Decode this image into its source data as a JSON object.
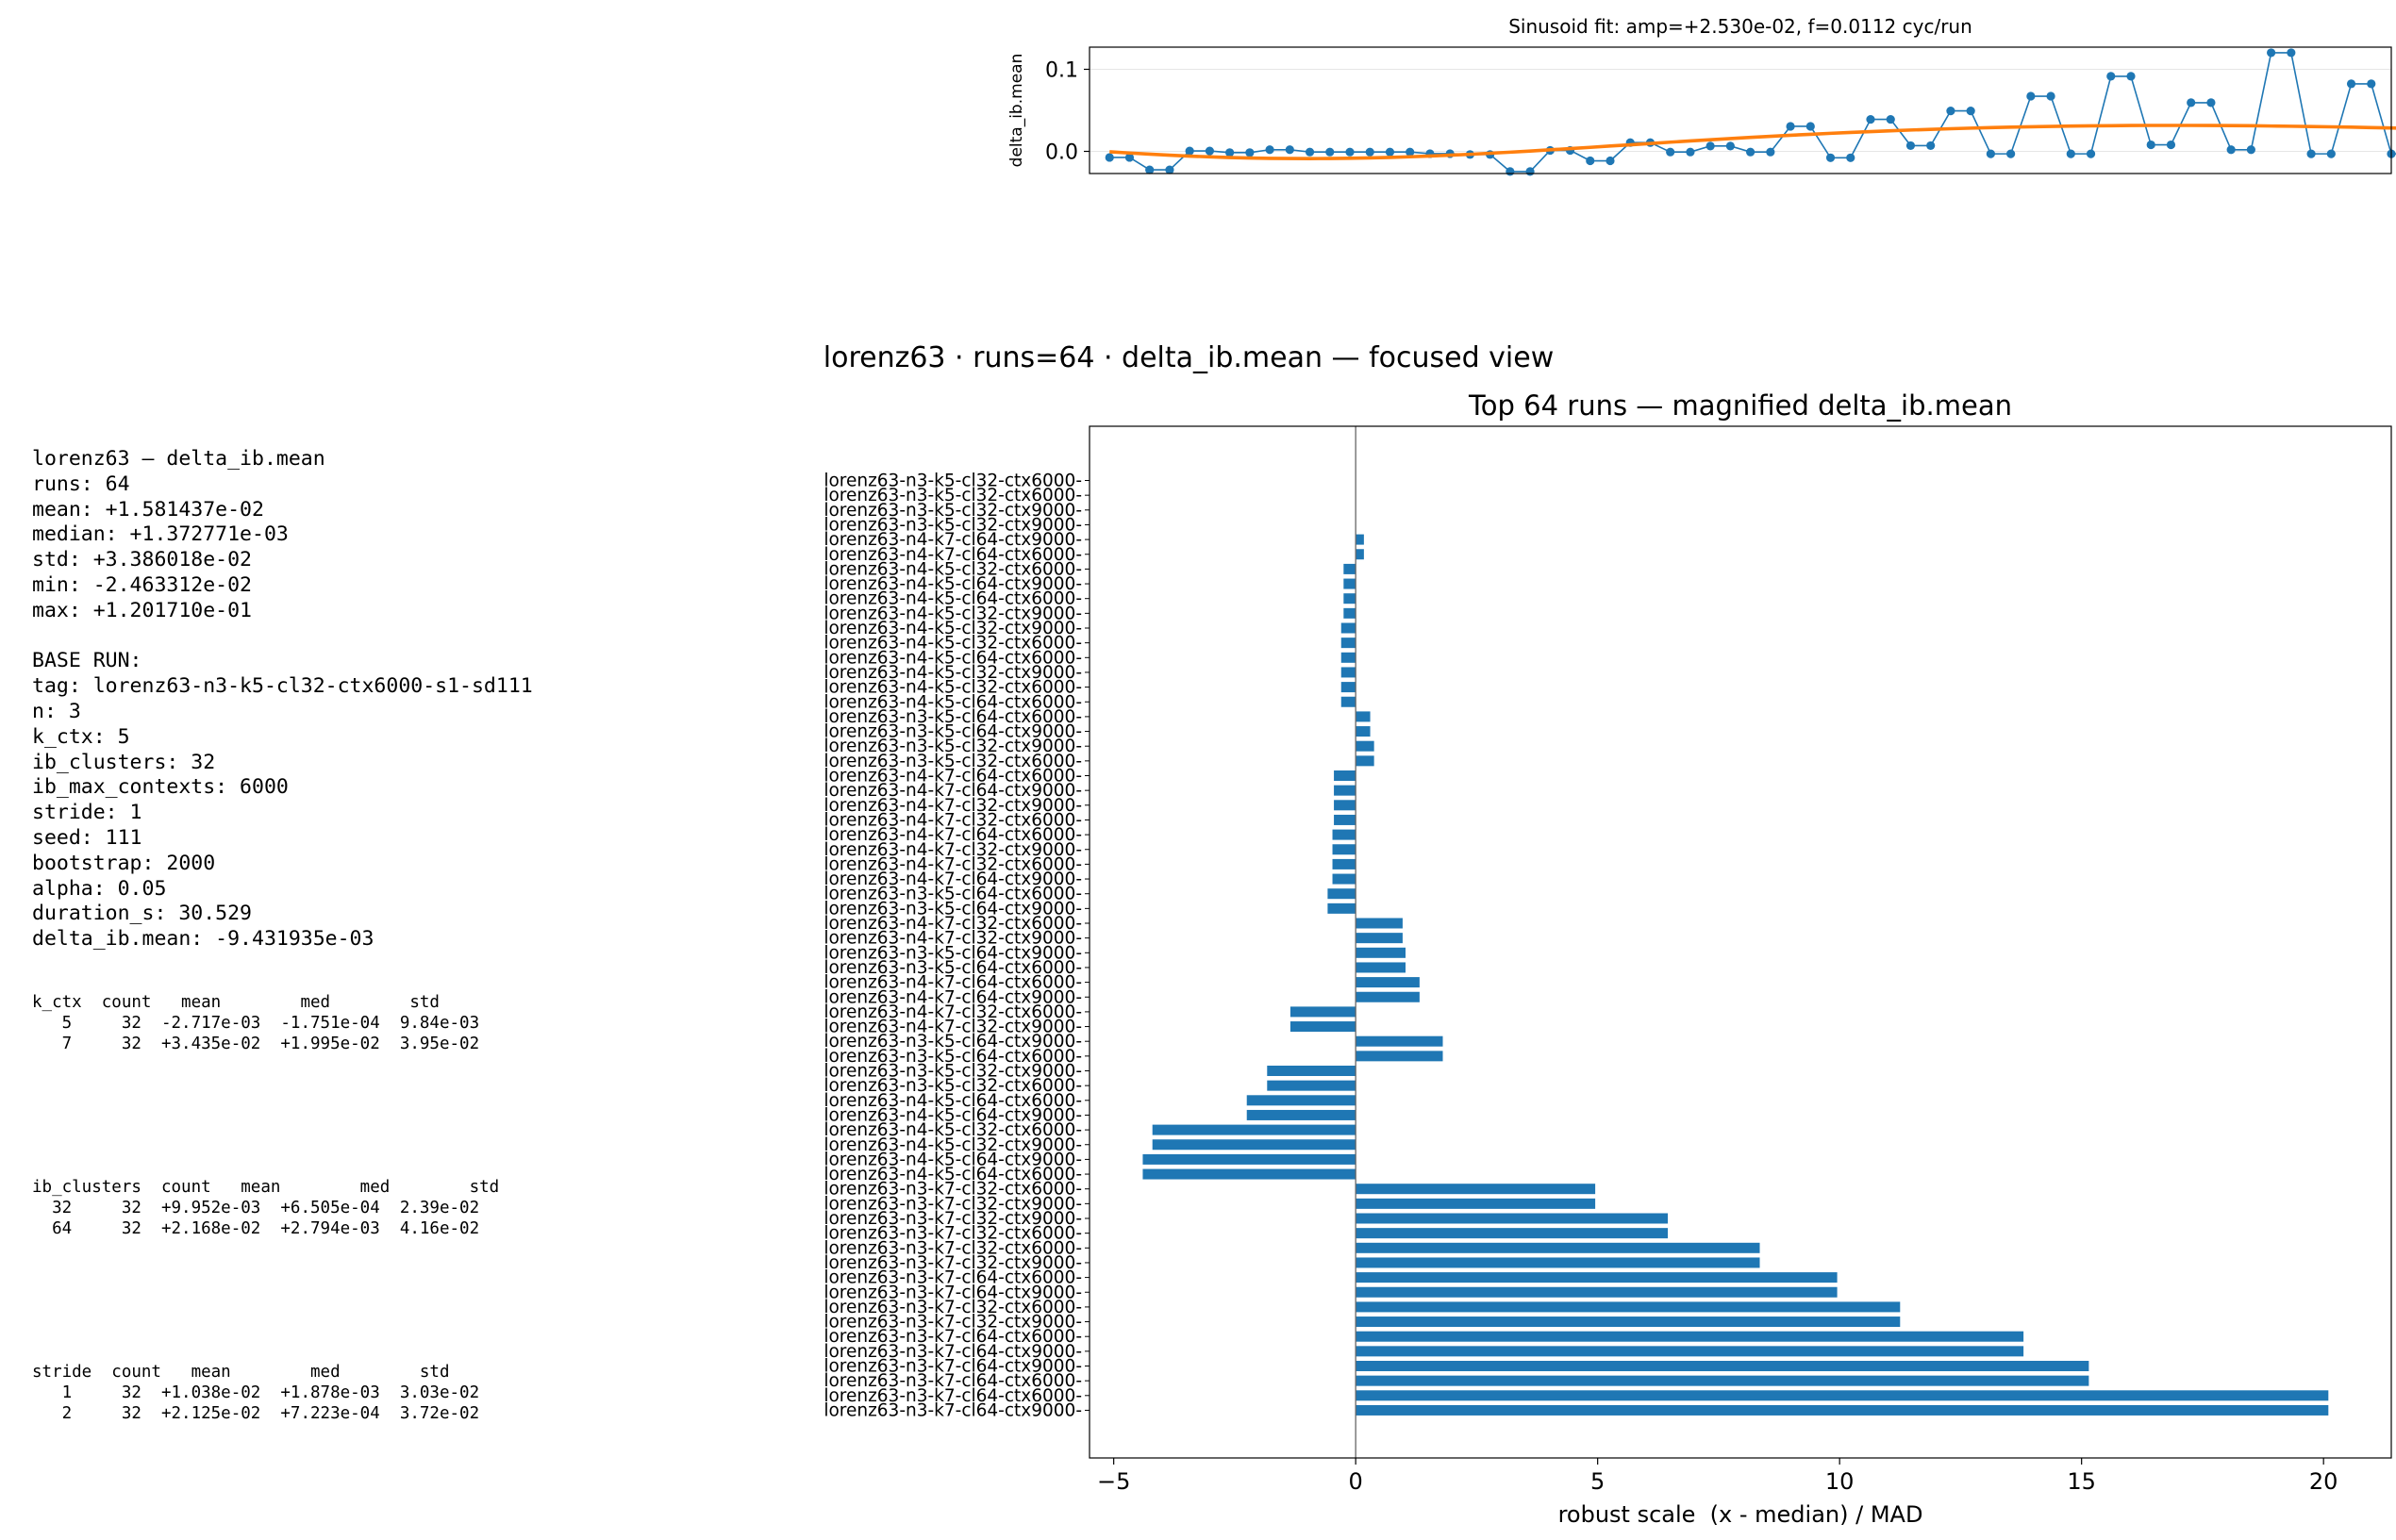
{
  "figure_title": "lorenz63 · runs=64 · delta_ib.mean — focused view",
  "summary": {
    "lines": [
      "lorenz63 — delta_ib.mean",
      "runs: 64",
      "mean: +1.581437e-02",
      "median: +1.372771e-03",
      "std: +3.386018e-02",
      "min: -2.463312e-02",
      "max: +1.201710e-01",
      "",
      "BASE RUN:",
      "tag: lorenz63-n3-k5-cl32-ctx6000-s1-sd111",
      "n: 3",
      "k_ctx: 5",
      "ib_clusters: 32",
      "ib_max_contexts: 6000",
      "stride: 1",
      "seed: 111",
      "bootstrap: 2000",
      "alpha: 0.05",
      "duration_s: 30.529",
      "delta_ib.mean: -9.431935e-03"
    ]
  },
  "group_tables": [
    {
      "header": "k_ctx  count   mean        med        std",
      "rows": [
        "   5     32  -2.717e-03  -1.751e-04  9.84e-03",
        "   7     32  +3.435e-02  +1.995e-02  3.95e-02"
      ]
    },
    {
      "header": "ib_clusters  count   mean        med        std",
      "rows": [
        "  32     32  +9.952e-03  +6.505e-04  2.39e-02",
        "  64     32  +2.168e-02  +2.794e-03  4.16e-02"
      ]
    },
    {
      "header": "stride  count   mean        med        std",
      "rows": [
        "   1     32  +1.038e-02  +1.878e-03  3.03e-02",
        "   2     32  +2.125e-02  +7.223e-04  3.72e-02"
      ]
    }
  ],
  "chart_data": [
    {
      "type": "line",
      "title": "Sinusoid fit: amp=+2.530e-02, f=0.0112 cyc/run",
      "xlabel": "",
      "ylabel": "delta_ib.mean",
      "ylim": [
        -0.027,
        0.127
      ],
      "xlim": [
        -1,
        64
      ],
      "yticks": [
        0.0,
        0.1
      ],
      "ytick_labels": [
        "0.0",
        "0.1"
      ],
      "grid": true,
      "series": [
        {
          "values": [
            -0.0074,
            -0.0074,
            -0.0225,
            -0.0225,
            0.0005,
            0.0005,
            -0.0015,
            -0.0015,
            0.002,
            0.002,
            -0.0008,
            -0.0008,
            -0.0008,
            -0.0008,
            -0.0008,
            -0.0008,
            -0.0028,
            -0.0028,
            -0.0038,
            -0.0038,
            -0.0246,
            -0.0246,
            0.0012,
            0.0012,
            -0.0115,
            -0.0115,
            0.0107,
            0.0107,
            -0.0008,
            -0.0008,
            0.0065,
            0.0065,
            -0.0008,
            -0.0008,
            0.0305,
            0.0305,
            -0.0078,
            -0.0078,
            0.039,
            0.039,
            0.007,
            0.007,
            0.0493,
            0.0493,
            -0.003,
            -0.003,
            0.0672,
            0.0672,
            -0.003,
            -0.003,
            0.0915,
            0.0915,
            0.008,
            0.008,
            0.0593,
            0.0593,
            0.002,
            0.002,
            0.1202,
            0.1202,
            -0.003,
            -0.003,
            0.0823,
            0.0823,
            -0.003,
            -0.003
          ]
        },
        {
          "values": [
            -0.0005,
            -0.002,
            -0.0034,
            -0.0047,
            -0.0058,
            -0.0067,
            -0.0075,
            -0.0081,
            -0.0085,
            -0.0087,
            -0.0088,
            -0.0087,
            -0.0084,
            -0.008,
            -0.0074,
            -0.0066,
            -0.0057,
            -0.0047,
            -0.0036,
            -0.0023,
            -0.001,
            0.0004,
            0.0019,
            0.0034,
            0.0049,
            0.0065,
            0.008,
            0.0096,
            0.0112,
            0.0127,
            0.0142,
            0.0156,
            0.017,
            0.0183,
            0.0196,
            0.0208,
            0.022,
            0.0231,
            0.0241,
            0.0251,
            0.026,
            0.0268,
            0.0276,
            0.0283,
            0.0289,
            0.0295,
            0.03,
            0.0304,
            0.0308,
            0.0311,
            0.0313,
            0.0315,
            0.0316,
            0.0316,
            0.0316,
            0.0315,
            0.0314,
            0.0312,
            0.0309,
            0.0306,
            0.0303,
            0.0299,
            0.0295,
            0.029,
            0.0285,
            0.028
          ]
        }
      ]
    },
    {
      "type": "bar",
      "orientation": "horizontal",
      "title": "Top 64 runs — magnified delta_ib.mean",
      "xlabel": "robust scale  (x - median) / MAD",
      "ylabel": "",
      "xlim": [
        -5.5,
        21.4
      ],
      "xticks": [
        -5,
        0,
        5,
        10,
        15,
        20
      ],
      "categories": [
        "lorenz63-n3-k5-cl32-ctx6000-",
        "lorenz63-n3-k5-cl32-ctx6000-",
        "lorenz63-n3-k5-cl32-ctx9000-",
        "lorenz63-n3-k5-cl32-ctx9000-",
        "lorenz63-n4-k7-cl64-ctx9000-",
        "lorenz63-n4-k7-cl64-ctx6000-",
        "lorenz63-n4-k5-cl32-ctx6000-",
        "lorenz63-n4-k5-cl64-ctx9000-",
        "lorenz63-n4-k5-cl64-ctx6000-",
        "lorenz63-n4-k5-cl32-ctx9000-",
        "lorenz63-n4-k5-cl32-ctx9000-",
        "lorenz63-n4-k5-cl32-ctx6000-",
        "lorenz63-n4-k5-cl64-ctx6000-",
        "lorenz63-n4-k5-cl32-ctx9000-",
        "lorenz63-n4-k5-cl32-ctx6000-",
        "lorenz63-n4-k5-cl64-ctx6000-",
        "lorenz63-n3-k5-cl64-ctx6000-",
        "lorenz63-n3-k5-cl64-ctx9000-",
        "lorenz63-n3-k5-cl32-ctx9000-",
        "lorenz63-n3-k5-cl32-ctx6000-",
        "lorenz63-n4-k7-cl64-ctx6000-",
        "lorenz63-n4-k7-cl64-ctx9000-",
        "lorenz63-n4-k7-cl32-ctx9000-",
        "lorenz63-n4-k7-cl32-ctx6000-",
        "lorenz63-n4-k7-cl64-ctx6000-",
        "lorenz63-n4-k7-cl32-ctx9000-",
        "lorenz63-n4-k7-cl32-ctx6000-",
        "lorenz63-n4-k7-cl64-ctx9000-",
        "lorenz63-n3-k5-cl64-ctx6000-",
        "lorenz63-n3-k5-cl64-ctx9000-",
        "lorenz63-n4-k7-cl32-ctx6000-",
        "lorenz63-n4-k7-cl32-ctx9000-",
        "lorenz63-n3-k5-cl64-ctx9000-",
        "lorenz63-n3-k5-cl64-ctx6000-",
        "lorenz63-n4-k7-cl64-ctx6000-",
        "lorenz63-n4-k7-cl64-ctx9000-",
        "lorenz63-n4-k7-cl32-ctx6000-",
        "lorenz63-n4-k7-cl32-ctx9000-",
        "lorenz63-n3-k5-cl64-ctx9000-",
        "lorenz63-n3-k5-cl64-ctx6000-",
        "lorenz63-n3-k5-cl32-ctx9000-",
        "lorenz63-n3-k5-cl32-ctx6000-",
        "lorenz63-n4-k5-cl64-ctx6000-",
        "lorenz63-n4-k5-cl64-ctx9000-",
        "lorenz63-n4-k5-cl32-ctx6000-",
        "lorenz63-n4-k5-cl32-ctx9000-",
        "lorenz63-n4-k5-cl64-ctx9000-",
        "lorenz63-n4-k5-cl64-ctx6000-",
        "lorenz63-n3-k7-cl32-ctx6000-",
        "lorenz63-n3-k7-cl32-ctx9000-",
        "lorenz63-n3-k7-cl32-ctx9000-",
        "lorenz63-n3-k7-cl32-ctx6000-",
        "lorenz63-n3-k7-cl32-ctx6000-",
        "lorenz63-n3-k7-cl32-ctx9000-",
        "lorenz63-n3-k7-cl64-ctx6000-",
        "lorenz63-n3-k7-cl64-ctx9000-",
        "lorenz63-n3-k7-cl32-ctx6000-",
        "lorenz63-n3-k7-cl32-ctx9000-",
        "lorenz63-n3-k7-cl64-ctx6000-",
        "lorenz63-n3-k7-cl64-ctx9000-",
        "lorenz63-n3-k7-cl64-ctx9000-",
        "lorenz63-n3-k7-cl64-ctx6000-",
        "lorenz63-n3-k7-cl64-ctx6000-",
        "lorenz63-n3-k7-cl64-ctx9000-"
      ],
      "values": [
        0.0,
        0.0,
        0.0,
        0.0,
        0.17,
        0.17,
        -0.25,
        -0.25,
        -0.25,
        -0.25,
        -0.3,
        -0.3,
        -0.3,
        -0.3,
        -0.3,
        -0.3,
        0.3,
        0.3,
        0.38,
        0.38,
        -0.45,
        -0.45,
        -0.45,
        -0.45,
        -0.48,
        -0.48,
        -0.48,
        -0.48,
        -0.58,
        -0.58,
        0.97,
        0.97,
        1.03,
        1.03,
        1.32,
        1.32,
        -1.35,
        -1.35,
        1.8,
        1.8,
        -1.83,
        -1.83,
        -2.25,
        -2.25,
        -4.2,
        -4.2,
        -4.4,
        -4.4,
        4.95,
        4.95,
        6.45,
        6.45,
        8.35,
        8.35,
        9.95,
        9.95,
        11.25,
        11.25,
        13.8,
        13.8,
        15.15,
        15.15,
        20.1,
        20.1
      ],
      "bar_color": "#1f77b4"
    }
  ],
  "colors": {
    "bars": "#1f77b4",
    "fit": "#ff7f0e",
    "data_line": "#1f77b4"
  }
}
